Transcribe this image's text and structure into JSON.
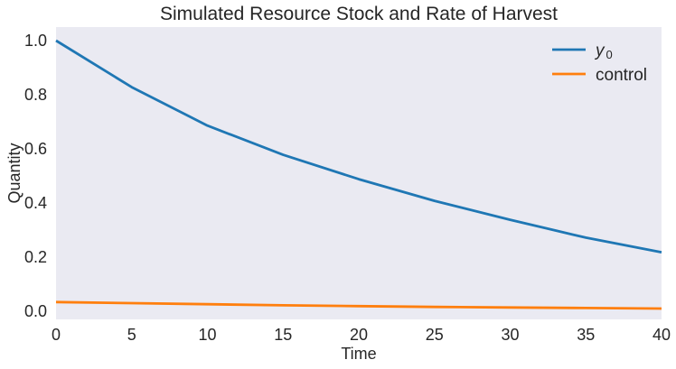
{
  "chart_data": {
    "type": "line",
    "title": "Simulated Resource Stock and Rate of Harvest",
    "xlabel": "Time",
    "ylabel": "Quantity",
    "xlim": [
      0,
      40
    ],
    "ylim": [
      -0.03,
      1.05
    ],
    "xticks": [
      0,
      5,
      10,
      15,
      20,
      25,
      30,
      35,
      40
    ],
    "yticks": [
      0.0,
      0.2,
      0.4,
      0.6,
      0.8,
      1.0
    ],
    "xtick_labels": [
      "0",
      "5",
      "10",
      "15",
      "20",
      "25",
      "30",
      "35",
      "40"
    ],
    "ytick_labels": [
      "0.0",
      "0.2",
      "0.4",
      "0.6",
      "0.8",
      "1.0"
    ],
    "grid": false,
    "background": "#eaeaf2",
    "legend_position": "top-right",
    "x": [
      0,
      5,
      10,
      15,
      20,
      25,
      30,
      35,
      40
    ],
    "series": [
      {
        "name": "y",
        "name_subscript": "0",
        "color": "#1f77b4",
        "values": [
          1.0,
          0.828,
          0.686,
          0.578,
          0.488,
          0.408,
          0.338,
          0.272,
          0.218
        ]
      },
      {
        "name": "control",
        "color": "#ff7f0e",
        "values": [
          0.034,
          0.03,
          0.026,
          0.022,
          0.019,
          0.016,
          0.014,
          0.012,
          0.01
        ]
      }
    ]
  }
}
